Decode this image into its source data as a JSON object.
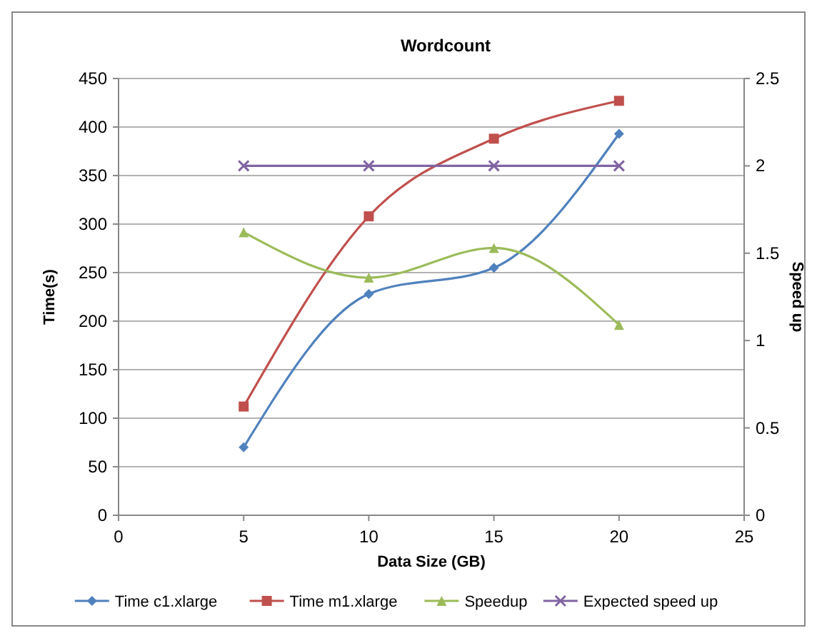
{
  "chart_data": {
    "type": "line",
    "title": "Wordcount",
    "xlabel": "Data Size (GB)",
    "ylabel": "Time(s)",
    "y2label": "Speed up",
    "x": [
      5,
      10,
      15,
      20
    ],
    "xlim": [
      0,
      25
    ],
    "xticks": [
      0,
      5,
      10,
      15,
      20,
      25
    ],
    "ylim": [
      0,
      450
    ],
    "yticks": [
      0,
      50,
      100,
      150,
      200,
      250,
      300,
      350,
      400,
      450
    ],
    "y2lim": [
      0,
      2.5
    ],
    "y2ticks": [
      0,
      0.5,
      1,
      1.5,
      2,
      2.5
    ],
    "grid": "y",
    "legend": "bottom",
    "series": [
      {
        "name": "Time c1.xlarge",
        "color": "#4f81bd",
        "values": [
          70,
          228,
          255,
          393
        ],
        "marker": "diamond"
      },
      {
        "name": "Time m1.xlarge",
        "color": "#c0504d",
        "values": [
          112,
          308,
          388,
          427
        ],
        "marker": "square"
      },
      {
        "name": "Speedup",
        "color": "#9bbb59",
        "values": [
          1.62,
          1.36,
          1.53,
          1.09
        ],
        "axis": "y2",
        "marker": "triangle"
      },
      {
        "name": "Expected speed up",
        "color": "#8064a2",
        "values": [
          2,
          2,
          2,
          2
        ],
        "axis": "y2",
        "marker": "cross"
      }
    ]
  }
}
